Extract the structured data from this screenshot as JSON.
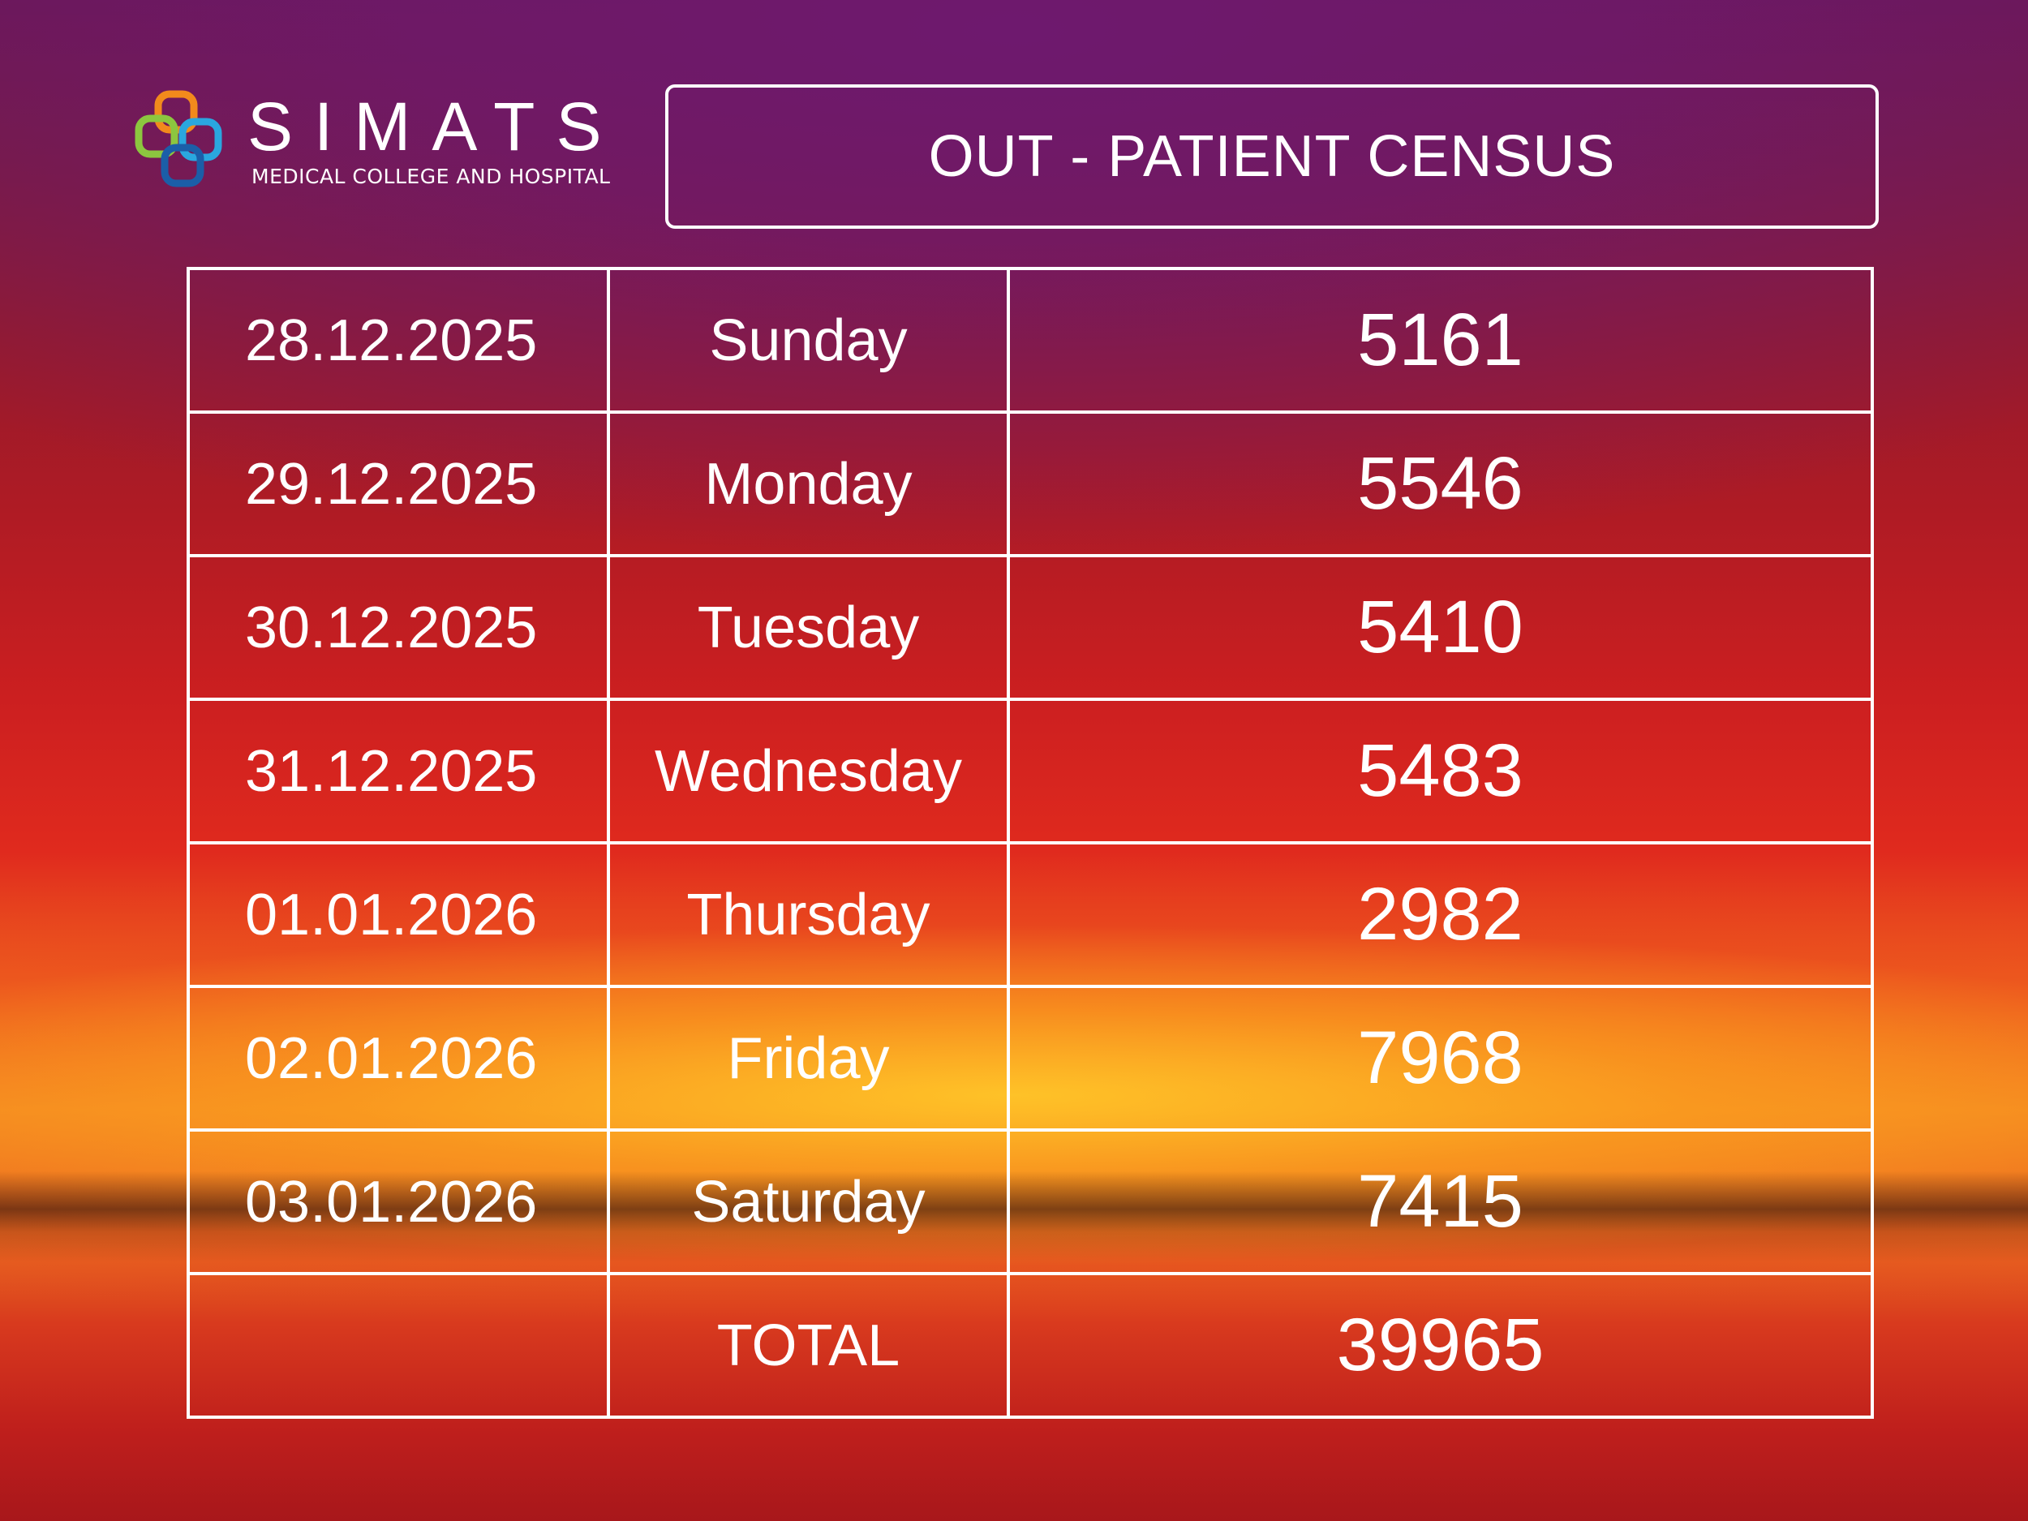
{
  "logo": {
    "name": "SIMATS",
    "subtitle": "MEDICAL COLLEGE AND HOSPITAL",
    "colors": [
      "#f28a1c",
      "#8cc63f",
      "#2aa7df",
      "#1b5ea8"
    ]
  },
  "title": "OUT - PATIENT CENSUS",
  "table": {
    "rows": [
      {
        "date": "28.12.2025",
        "day": "Sunday",
        "count": "5161"
      },
      {
        "date": "29.12.2025",
        "day": "Monday",
        "count": "5546"
      },
      {
        "date": "30.12.2025",
        "day": "Tuesday",
        "count": "5410"
      },
      {
        "date": "31.12.2025",
        "day": "Wednesday",
        "count": "5483"
      },
      {
        "date": "01.01.2026",
        "day": "Thursday",
        "count": "2982"
      },
      {
        "date": "02.01.2026",
        "day": "Friday",
        "count": "7968"
      },
      {
        "date": "03.01.2026",
        "day": "Saturday",
        "count": "7415"
      }
    ],
    "total": {
      "date": "",
      "label": "TOTAL",
      "count": "39965"
    }
  }
}
